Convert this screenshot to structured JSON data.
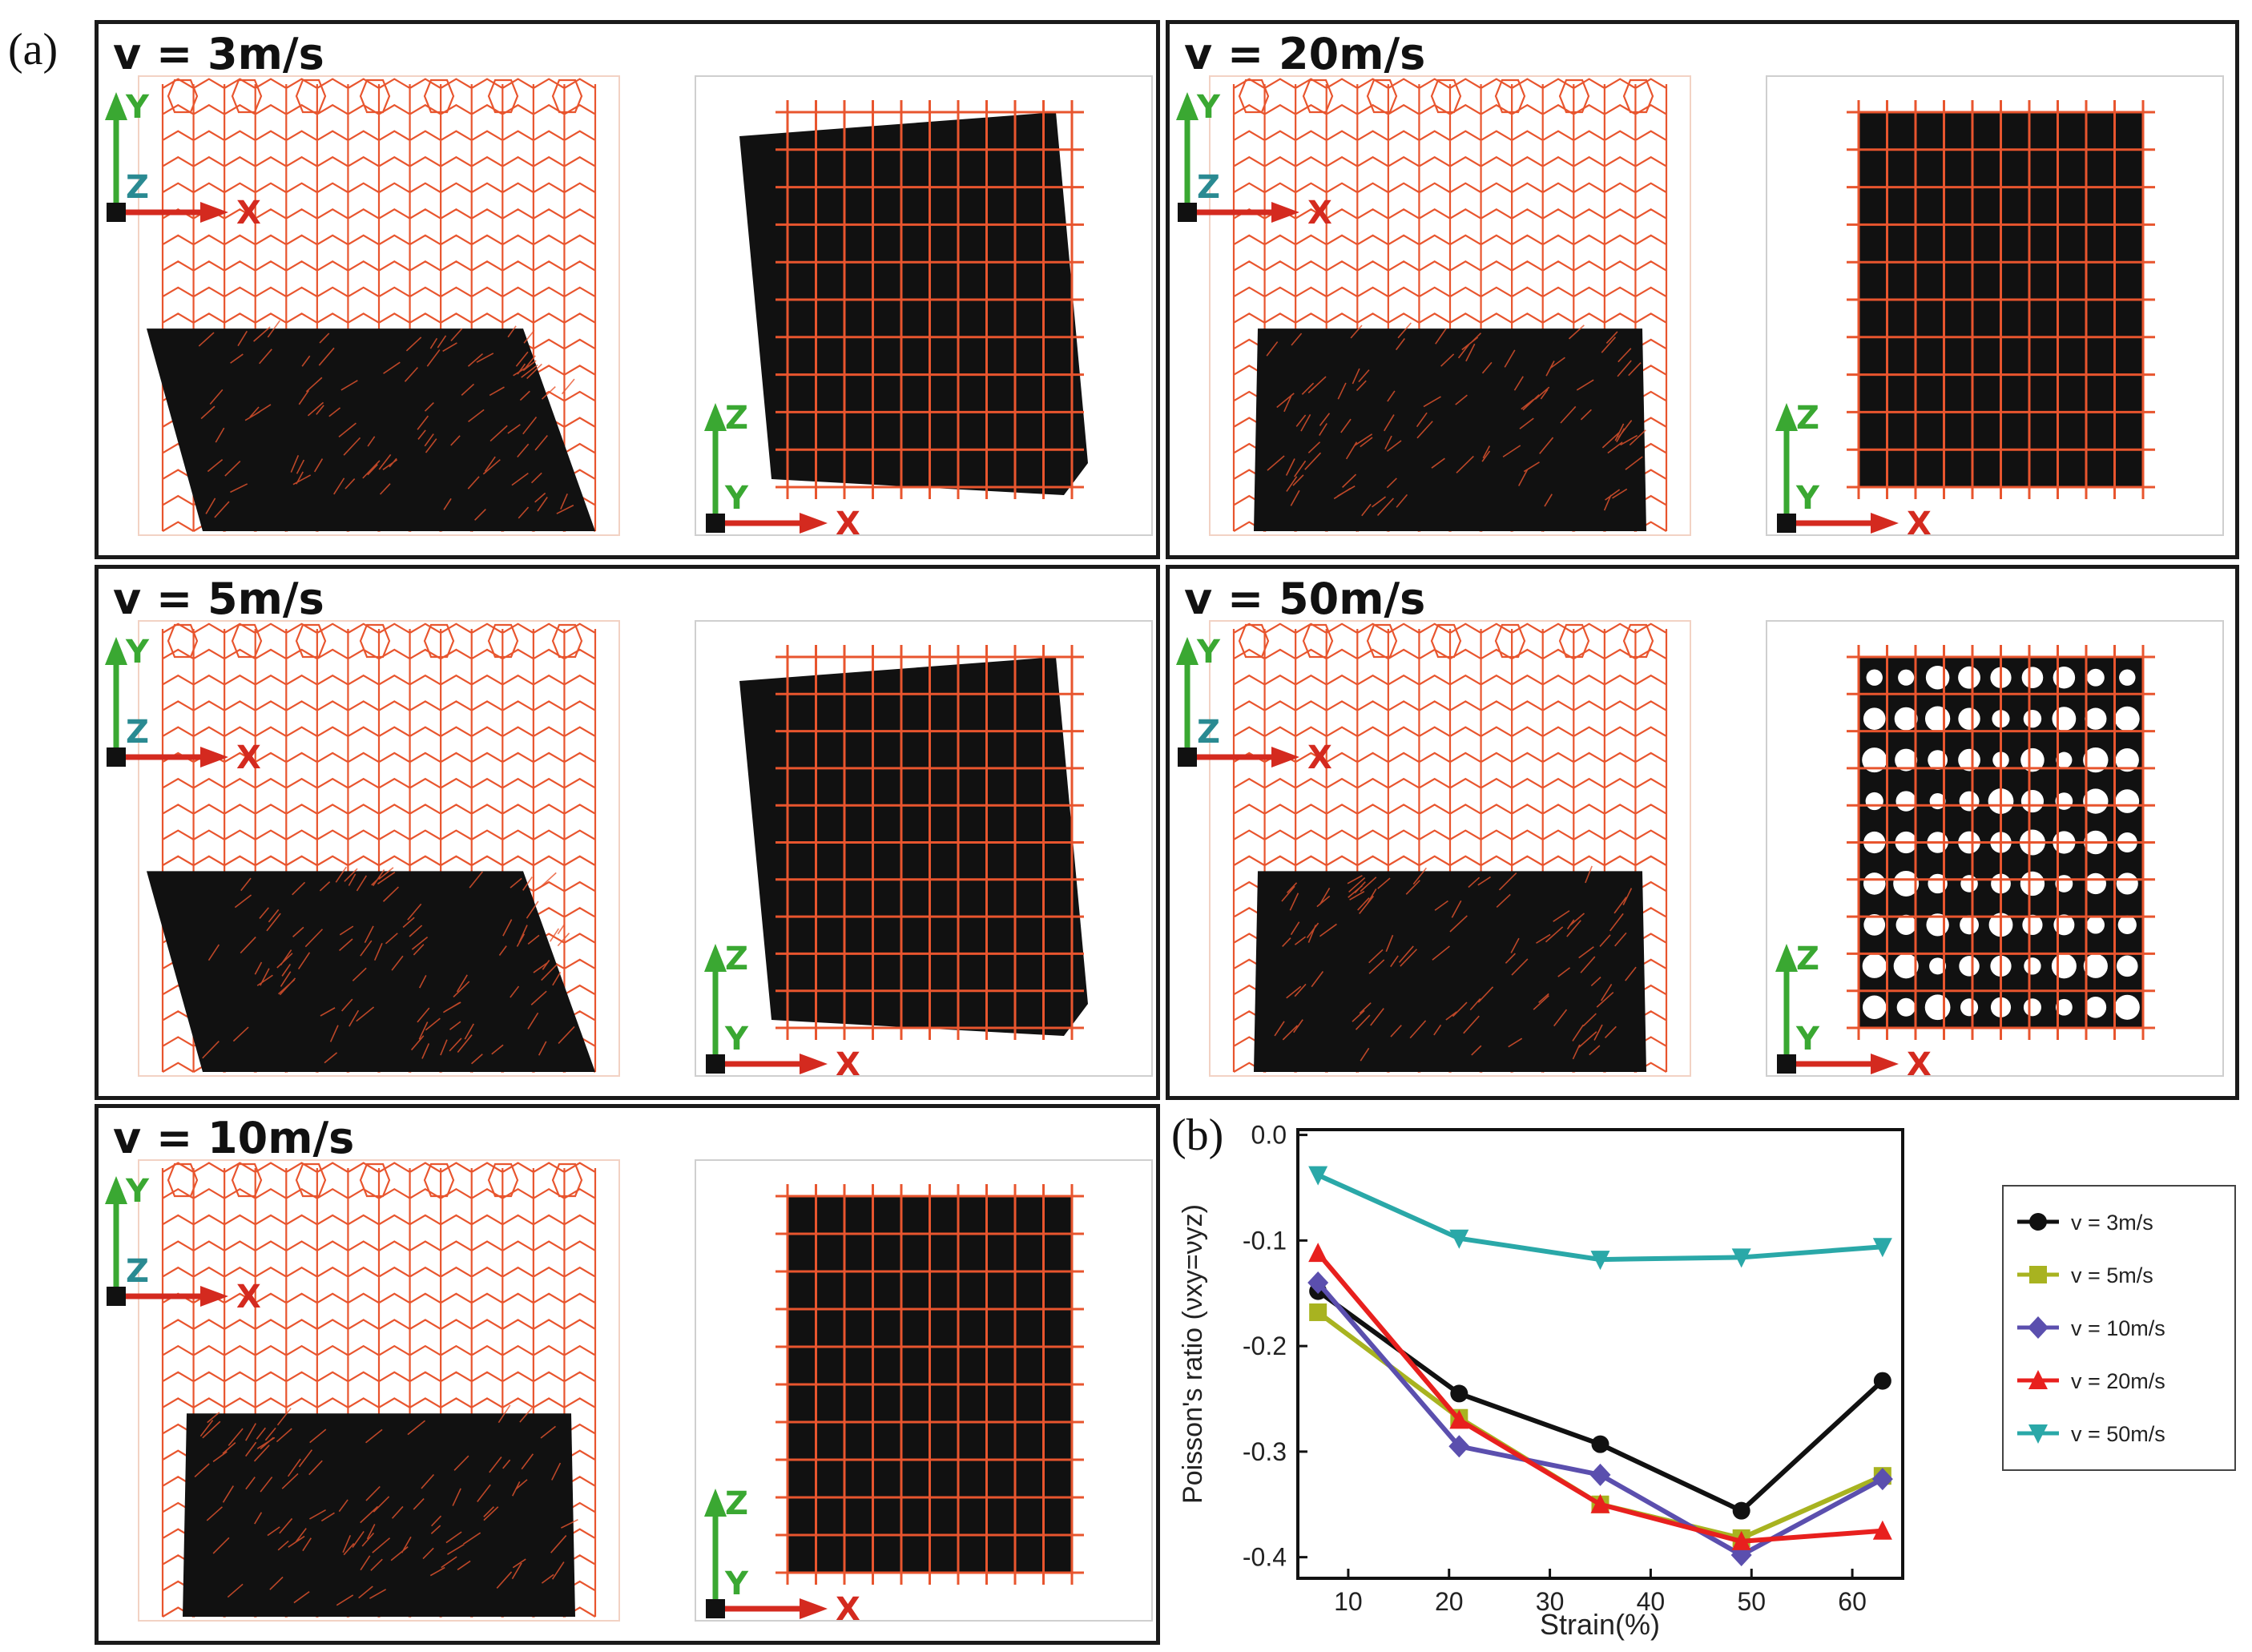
{
  "figure": {
    "panel_a_label": "(a)",
    "panel_b_label": "(b)"
  },
  "panels": [
    {
      "key": "v3",
      "title": "v = 3m/s",
      "deform": "shear_left"
    },
    {
      "key": "v20",
      "title": "v = 20m/s",
      "deform": "uniform"
    },
    {
      "key": "v5",
      "title": "v = 5m/s",
      "deform": "shear_left"
    },
    {
      "key": "v50",
      "title": "v = 50m/s",
      "deform": "uniform"
    },
    {
      "key": "v10",
      "title": "v = 10m/s",
      "deform": "uniform"
    }
  ],
  "axes_labels": {
    "x": "X",
    "y": "Y",
    "z": "Z"
  },
  "colors": {
    "lattice": "#e8552e",
    "deformed": "#111111",
    "axis_x": "#d42a1f",
    "axis_y": "#3aa832",
    "axis_z": "#2a8a92"
  },
  "chart_data": {
    "type": "line",
    "title": "",
    "xlabel": "Strain(%)",
    "ylabel": "Poisson's ratio (νxy=νyz)",
    "xlim": [
      5,
      65
    ],
    "ylim": [
      -0.42,
      0.005
    ],
    "xticks": [
      10,
      20,
      30,
      40,
      50,
      60
    ],
    "yticks": [
      0.0,
      -0.1,
      -0.2,
      -0.3,
      -0.4
    ],
    "ytick_labels": [
      "0.0",
      "-0.1",
      "-0.2",
      "-0.3",
      "-0.4"
    ],
    "legend_position": "right",
    "x": [
      7,
      21,
      35,
      49,
      63
    ],
    "series": [
      {
        "name": "v = 3m/s",
        "color": "#111111",
        "marker": "circle",
        "values": [
          -0.148,
          -0.245,
          -0.293,
          -0.356,
          -0.233
        ]
      },
      {
        "name": "v = 5m/s",
        "color": "#a8b320",
        "marker": "square",
        "values": [
          -0.168,
          -0.268,
          -0.35,
          -0.382,
          -0.323
        ]
      },
      {
        "name": "v = 10m/s",
        "color": "#5b4fae",
        "marker": "diamond",
        "values": [
          -0.14,
          -0.295,
          -0.322,
          -0.398,
          -0.326
        ]
      },
      {
        "name": "v = 20m/s",
        "color": "#e8201e",
        "marker": "triangle-up",
        "values": [
          -0.112,
          -0.27,
          -0.35,
          -0.385,
          -0.375
        ]
      },
      {
        "name": "v = 50m/s",
        "color": "#2aa8a8",
        "marker": "triangle-down",
        "values": [
          -0.038,
          -0.098,
          -0.118,
          -0.116,
          -0.106
        ]
      }
    ]
  }
}
